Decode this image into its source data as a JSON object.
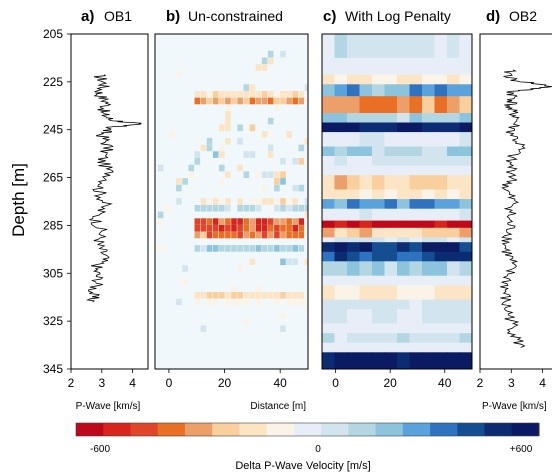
{
  "chart_data": [
    {
      "panel": "a",
      "title_letter": "a)",
      "title": "OB1",
      "type": "line",
      "ylabel": "Depth [m]",
      "xlabel": "P-Wave [km/s]",
      "xlim": [
        2,
        4.5
      ],
      "ylim": [
        345,
        205
      ],
      "xticks": [
        "2",
        "3",
        "4"
      ],
      "yticks": [
        "205",
        "225",
        "245",
        "265",
        "285",
        "305",
        "325",
        "345"
      ],
      "depth": [
        222,
        226,
        230,
        234,
        238,
        241,
        242.5,
        244,
        247,
        252,
        258,
        264,
        270,
        276,
        282,
        288,
        293,
        298,
        303,
        308,
        313,
        317
      ],
      "values": [
        2.9,
        3.1,
        2.9,
        3.2,
        3.0,
        3.3,
        4.2,
        3.3,
        3.0,
        3.2,
        3.0,
        3.3,
        2.9,
        3.1,
        2.8,
        3.0,
        2.9,
        3.1,
        2.8,
        2.9,
        2.7,
        2.7
      ]
    },
    {
      "panel": "b",
      "title_letter": "b)",
      "title": "Un-constrained",
      "type": "heatmap",
      "xlabel": "Distance [m]",
      "xlim": [
        -5,
        50
      ],
      "xticks": [
        "0",
        "20",
        "40"
      ],
      "dominant_rows": [
        {
          "depth": 283,
          "value": -550
        },
        {
          "depth": 287,
          "value": -400
        },
        {
          "depth": 231,
          "value": -350
        },
        {
          "depth": 274,
          "value": -220
        },
        {
          "depth": 313,
          "value": -200
        },
        {
          "depth": 276,
          "value": 220
        },
        {
          "depth": 293,
          "value": 180
        }
      ]
    },
    {
      "panel": "c",
      "title_letter": "c)",
      "title": "With Log Penalty",
      "type": "heatmap",
      "xlabel": "Distance [m]",
      "xlim": [
        -5,
        50
      ],
      "xticks": [
        "0",
        "20",
        "40"
      ],
      "layers": [
        [
          205,
          215,
          70
        ],
        [
          215,
          222,
          0
        ],
        [
          222,
          226,
          -120
        ],
        [
          226,
          231,
          250
        ],
        [
          231,
          238,
          -300
        ],
        [
          238,
          242,
          150
        ],
        [
          242,
          246,
          550
        ],
        [
          246,
          252,
          30
        ],
        [
          252,
          256,
          150
        ],
        [
          256,
          260,
          60
        ],
        [
          260,
          264,
          0
        ],
        [
          264,
          270,
          -180
        ],
        [
          270,
          274,
          -120
        ],
        [
          274,
          278,
          300
        ],
        [
          278,
          283,
          40
        ],
        [
          283,
          286,
          -550
        ],
        [
          286,
          290,
          -200
        ],
        [
          290,
          292,
          30
        ],
        [
          292,
          296,
          520
        ],
        [
          296,
          300,
          380
        ],
        [
          300,
          306,
          150
        ],
        [
          306,
          310,
          0
        ],
        [
          310,
          316,
          -100
        ],
        [
          316,
          320,
          60
        ],
        [
          320,
          326,
          40
        ],
        [
          326,
          330,
          0
        ],
        [
          330,
          334,
          80
        ],
        [
          334,
          338,
          0
        ],
        [
          338,
          345,
          620
        ]
      ]
    },
    {
      "panel": "d",
      "title_letter": "d)",
      "title": "OB2",
      "type": "line",
      "xlabel": "P-Wave [km/s]",
      "xlim": [
        2,
        4.5
      ],
      "xticks": [
        "2",
        "3",
        "4"
      ],
      "depth": [
        220,
        224,
        227,
        229,
        232,
        236,
        240,
        246,
        252,
        258,
        264,
        270,
        276,
        282,
        288,
        294,
        300,
        306,
        312,
        318,
        324,
        330,
        336
      ],
      "values": [
        2.9,
        3.0,
        4.3,
        3.0,
        3.1,
        2.9,
        3.2,
        3.0,
        3.3,
        2.9,
        3.1,
        2.8,
        3.1,
        2.9,
        3.0,
        2.8,
        3.0,
        2.9,
        2.8,
        2.8,
        3.0,
        3.1,
        3.3
      ]
    },
    {
      "type": "colorbar",
      "label": "Delta P-Wave Velocity [m/s]",
      "range": [
        -600,
        600
      ],
      "tick_labels": [
        "-600",
        "0",
        "+600"
      ],
      "colors": [
        "#c0081b",
        "#d8241c",
        "#e0452a",
        "#e86f24",
        "#ed9f6a",
        "#f9cf9e",
        "#fbe5c5",
        "#faf4e8",
        "#e8eef8",
        "#d2e4ee",
        "#b2d7e2",
        "#8cc4dd",
        "#5aa2dc",
        "#2f73c0",
        "#154d91",
        "#0b2c73",
        "#0b1b63"
      ]
    }
  ]
}
